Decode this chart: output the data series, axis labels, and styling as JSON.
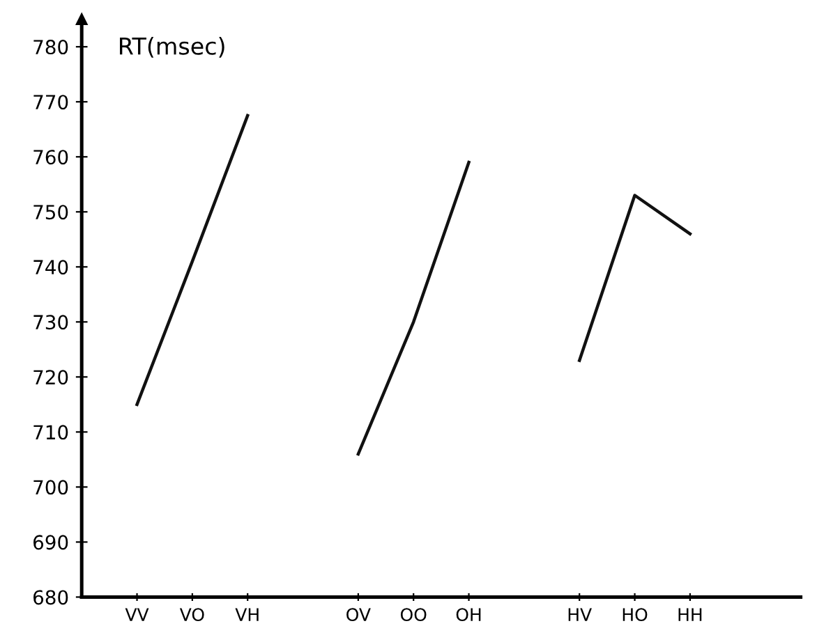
{
  "chart_data": {
    "type": "line",
    "ylabel": "RT(msec)",
    "categories": [
      "VV",
      "VO",
      "VH",
      null,
      "OV",
      "OO",
      "OH",
      null,
      "HV",
      "HO",
      "HH"
    ],
    "series": [
      {
        "color": "#111111",
        "values": [
          715,
          741,
          767.5,
          null,
          null,
          null,
          null,
          null,
          null,
          null,
          null
        ]
      },
      {
        "color": "#111111",
        "values": [
          null,
          null,
          null,
          null,
          706,
          730,
          759,
          null,
          null,
          null,
          null
        ]
      },
      {
        "color": "#111111",
        "values": [
          null,
          null,
          null,
          null,
          null,
          null,
          null,
          null,
          723,
          753,
          746
        ]
      }
    ],
    "ylim": [
      680,
      785
    ],
    "yticks": [
      680,
      690,
      700,
      710,
      720,
      730,
      740,
      750,
      760,
      770,
      780
    ],
    "grid": false,
    "marker": "none",
    "line_style": "solid"
  }
}
